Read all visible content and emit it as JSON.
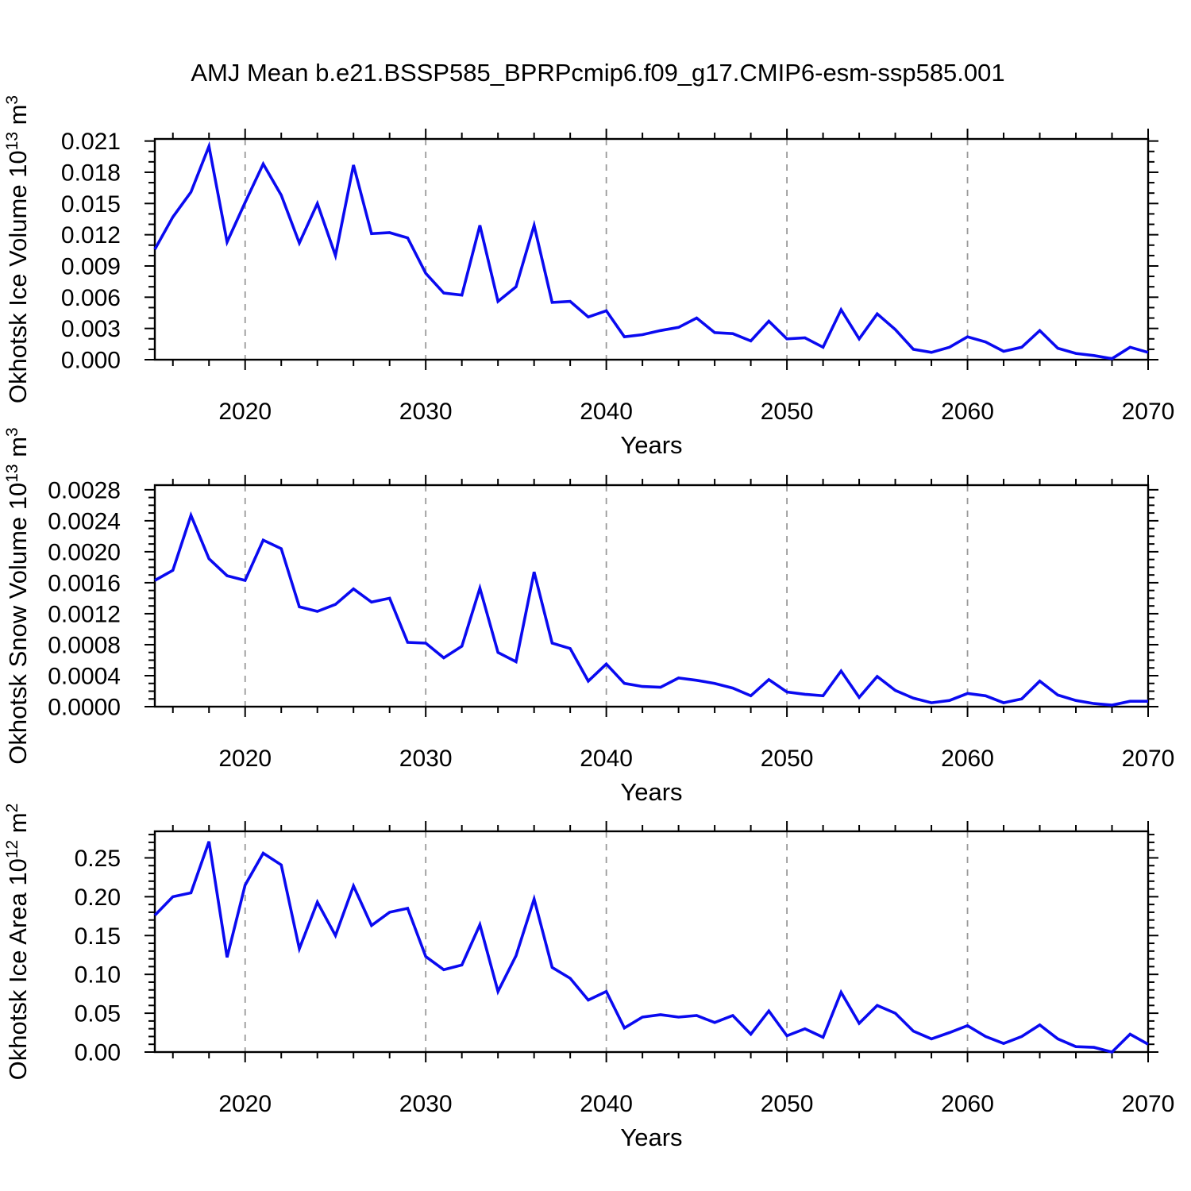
{
  "title": "AMJ Mean b.e21.BSSP585_BPRPcmip6.f09_g17.CMIP6-esm-ssp585.001",
  "colors": {
    "line": "#0a0af0",
    "grid": "#999999",
    "axis": "#000000",
    "background": "#ffffff"
  },
  "chart_data": [
    {
      "type": "line",
      "name": "ice-volume",
      "ylabel": "Okhotsk Ice Volume 10^13 m^3",
      "ylabel_parts": {
        "prefix": "Okhotsk Ice Volume 10",
        "sup1": "13",
        "mid": " m",
        "sup2": "3"
      },
      "xlabel": "Years",
      "x": [
        2015,
        2016,
        2017,
        2018,
        2019,
        2020,
        2021,
        2022,
        2023,
        2024,
        2025,
        2026,
        2027,
        2028,
        2029,
        2030,
        2031,
        2032,
        2033,
        2034,
        2035,
        2036,
        2037,
        2038,
        2039,
        2040,
        2041,
        2042,
        2043,
        2044,
        2045,
        2046,
        2047,
        2048,
        2049,
        2050,
        2051,
        2052,
        2053,
        2054,
        2055,
        2056,
        2057,
        2058,
        2059,
        2060,
        2061,
        2062,
        2063,
        2064,
        2065,
        2066,
        2067,
        2068,
        2069,
        2070
      ],
      "values": [
        0.0106,
        0.0137,
        0.0161,
        0.0205,
        0.0113,
        0.0151,
        0.0188,
        0.0158,
        0.0112,
        0.015,
        0.01,
        0.0187,
        0.0121,
        0.0122,
        0.0117,
        0.0083,
        0.0064,
        0.0062,
        0.0129,
        0.0056,
        0.007,
        0.0129,
        0.0055,
        0.0056,
        0.0041,
        0.0047,
        0.0022,
        0.0024,
        0.0028,
        0.0031,
        0.004,
        0.0026,
        0.0025,
        0.0018,
        0.0037,
        0.002,
        0.0021,
        0.0012,
        0.0048,
        0.002,
        0.0044,
        0.0029,
        0.001,
        0.0007,
        0.0012,
        0.0022,
        0.0017,
        0.0008,
        0.0012,
        0.0028,
        0.0011,
        0.0006,
        0.0004,
        0.0001,
        0.0012,
        0.0007
      ],
      "xlim": [
        2015,
        2070
      ],
      "ylim": [
        0,
        0.0212
      ],
      "xtick_values": [
        2020,
        2030,
        2040,
        2050,
        2060,
        2070
      ],
      "xtick_labels": [
        "2020",
        "2030",
        "2040",
        "2050",
        "2060",
        "2070"
      ],
      "x_minor_step": 2,
      "ytick_values": [
        0.0,
        0.003,
        0.006,
        0.009,
        0.012,
        0.015,
        0.018,
        0.021
      ],
      "ytick_labels": [
        "0.000",
        "0.003",
        "0.006",
        "0.009",
        "0.012",
        "0.015",
        "0.018",
        "0.021"
      ],
      "y_minor_step": 0.001,
      "grid_x": [
        2020,
        2030,
        2040,
        2050,
        2060
      ],
      "grid": "vertical-dashed",
      "legend": "none"
    },
    {
      "type": "line",
      "name": "snow-volume",
      "ylabel": "Okhotsk Snow Volume 10^13 m^3",
      "ylabel_parts": {
        "prefix": "Okhotsk Snow Volume 10",
        "sup1": "13",
        "mid": " m",
        "sup2": "3"
      },
      "xlabel": "Years",
      "x": [
        2015,
        2016,
        2017,
        2018,
        2019,
        2020,
        2021,
        2022,
        2023,
        2024,
        2025,
        2026,
        2027,
        2028,
        2029,
        2030,
        2031,
        2032,
        2033,
        2034,
        2035,
        2036,
        2037,
        2038,
        2039,
        2040,
        2041,
        2042,
        2043,
        2044,
        2045,
        2046,
        2047,
        2048,
        2049,
        2050,
        2051,
        2052,
        2053,
        2054,
        2055,
        2056,
        2057,
        2058,
        2059,
        2060,
        2061,
        2062,
        2063,
        2064,
        2065,
        2066,
        2067,
        2068,
        2069,
        2070
      ],
      "values": [
        0.00163,
        0.00176,
        0.00247,
        0.00191,
        0.00169,
        0.00163,
        0.00215,
        0.00204,
        0.00129,
        0.00123,
        0.00132,
        0.00152,
        0.00135,
        0.0014,
        0.00083,
        0.00082,
        0.00063,
        0.00078,
        0.00153,
        0.0007,
        0.00058,
        0.00174,
        0.00082,
        0.00075,
        0.00033,
        0.00055,
        0.0003,
        0.00026,
        0.00025,
        0.00037,
        0.00034,
        0.0003,
        0.00024,
        0.00014,
        0.00035,
        0.00019,
        0.00016,
        0.00014,
        0.00046,
        0.00012,
        0.00039,
        0.00021,
        0.00011,
        5e-05,
        8e-05,
        0.00017,
        0.00014,
        5e-05,
        0.0001,
        0.00033,
        0.00015,
        8e-05,
        4e-05,
        2e-05,
        7e-05,
        7e-05
      ],
      "xlim": [
        2015,
        2070
      ],
      "ylim": [
        0,
        0.00286
      ],
      "xtick_values": [
        2020,
        2030,
        2040,
        2050,
        2060,
        2070
      ],
      "xtick_labels": [
        "2020",
        "2030",
        "2040",
        "2050",
        "2060",
        "2070"
      ],
      "x_minor_step": 2,
      "ytick_values": [
        0.0,
        0.0004,
        0.0008,
        0.0012,
        0.0016,
        0.002,
        0.0024,
        0.0028
      ],
      "ytick_labels": [
        "0.0000",
        "0.0004",
        "0.0008",
        "0.0012",
        "0.0016",
        "0.0020",
        "0.0024",
        "0.0028"
      ],
      "y_minor_step": 0.0001,
      "grid_x": [
        2020,
        2030,
        2040,
        2050,
        2060
      ],
      "grid": "vertical-dashed",
      "legend": "none"
    },
    {
      "type": "line",
      "name": "ice-area",
      "ylabel": "Okhotsk Ice Area 10^12 m^2",
      "ylabel_parts": {
        "prefix": "Okhotsk Ice Area 10",
        "sup1": "12",
        "mid": " m",
        "sup2": "2"
      },
      "xlabel": "Years",
      "x": [
        2015,
        2016,
        2017,
        2018,
        2019,
        2020,
        2021,
        2022,
        2023,
        2024,
        2025,
        2026,
        2027,
        2028,
        2029,
        2030,
        2031,
        2032,
        2033,
        2034,
        2035,
        2036,
        2037,
        2038,
        2039,
        2040,
        2041,
        2042,
        2043,
        2044,
        2045,
        2046,
        2047,
        2048,
        2049,
        2050,
        2051,
        2052,
        2053,
        2054,
        2055,
        2056,
        2057,
        2058,
        2059,
        2060,
        2061,
        2062,
        2063,
        2064,
        2065,
        2066,
        2067,
        2068,
        2069,
        2070
      ],
      "values": [
        0.176,
        0.2,
        0.205,
        0.271,
        0.122,
        0.215,
        0.256,
        0.241,
        0.133,
        0.193,
        0.15,
        0.214,
        0.163,
        0.18,
        0.185,
        0.123,
        0.106,
        0.112,
        0.164,
        0.078,
        0.124,
        0.197,
        0.109,
        0.095,
        0.067,
        0.078,
        0.031,
        0.045,
        0.048,
        0.045,
        0.047,
        0.038,
        0.047,
        0.023,
        0.053,
        0.021,
        0.03,
        0.019,
        0.077,
        0.037,
        0.06,
        0.05,
        0.027,
        0.017,
        0.025,
        0.034,
        0.02,
        0.011,
        0.02,
        0.035,
        0.017,
        0.007,
        0.006,
        0.0,
        0.023,
        0.01
      ],
      "xlim": [
        2015,
        2070
      ],
      "ylim": [
        0,
        0.2842
      ],
      "xtick_values": [
        2020,
        2030,
        2040,
        2050,
        2060,
        2070
      ],
      "xtick_labels": [
        "2020",
        "2030",
        "2040",
        "2050",
        "2060",
        "2070"
      ],
      "x_minor_step": 2,
      "ytick_values": [
        0.0,
        0.05,
        0.1,
        0.15,
        0.2,
        0.25
      ],
      "ytick_labels": [
        "0.00",
        "0.05",
        "0.10",
        "0.15",
        "0.20",
        "0.25"
      ],
      "y_minor_step": 0.01,
      "grid_x": [
        2020,
        2030,
        2040,
        2050,
        2060
      ],
      "grid": "vertical-dashed",
      "legend": "none"
    }
  ]
}
